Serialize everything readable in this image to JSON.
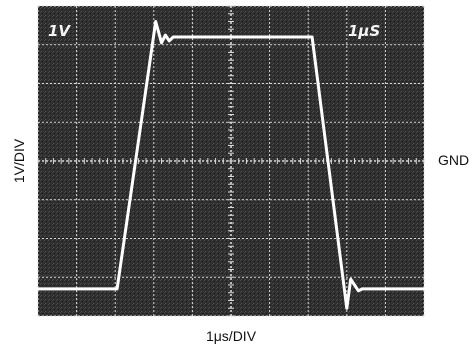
{
  "chart_data": {
    "type": "line",
    "title": "",
    "xlabel": "1μs/DIV",
    "ylabel": "1V/DIV",
    "screen_labels": {
      "volts": "1V",
      "time": "1μS"
    },
    "side_label": "GND",
    "grid": true,
    "divisions": {
      "x": 10,
      "y": 8
    },
    "xlim": [
      0,
      10
    ],
    "ylim": [
      -4.5,
      3.5
    ],
    "ground_level": 0,
    "series": [
      {
        "x": [
          0,
          2.05,
          3.05,
          3.2,
          3.3,
          3.4,
          3.5,
          7.1,
          8.0,
          8.1,
          8.3,
          8.4,
          10
        ],
        "y": [
          -3.8,
          -3.8,
          3.1,
          2.55,
          2.75,
          2.6,
          2.7,
          2.7,
          -4.3,
          -3.55,
          -3.85,
          -3.8,
          -3.8
        ]
      }
    ],
    "colors": {
      "screen": "#2b2b2b",
      "grid": "#d8d8d8",
      "trace": "#ffffff",
      "text": "#111111"
    }
  }
}
